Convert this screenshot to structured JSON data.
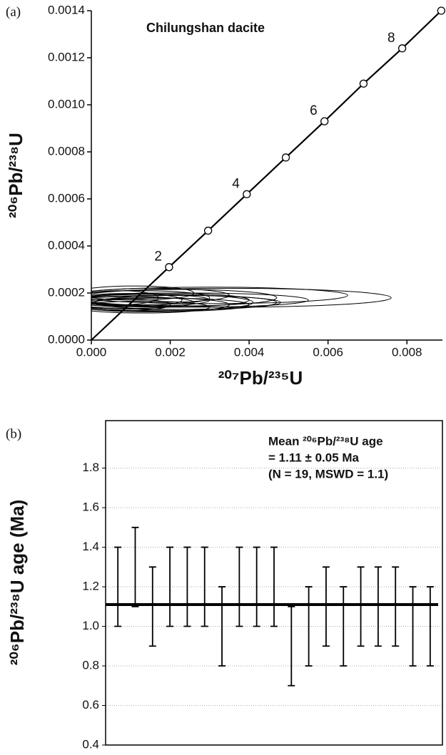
{
  "chart_data": [
    {
      "type": "concordia",
      "panel_label": "(a)",
      "title": "Chilungshan dacite",
      "x_label": "²⁰⁷Pb/²³⁵U",
      "y_label": "²⁰⁶Pb/²³⁸U",
      "xlim": [
        0,
        0.0089
      ],
      "ylim": [
        0,
        0.0014
      ],
      "xticks": [
        {
          "value": 0,
          "label": "0.000"
        },
        {
          "value": 0.002,
          "label": "0.002"
        },
        {
          "value": 0.004,
          "label": "0.004"
        },
        {
          "value": 0.006,
          "label": "0.006"
        },
        {
          "value": 0.008,
          "label": "0.008"
        }
      ],
      "yticks": [
        {
          "value": 0,
          "label": "0.0000"
        },
        {
          "value": 0.0002,
          "label": "0.0002"
        },
        {
          "value": 0.0004,
          "label": "0.0004"
        },
        {
          "value": 0.0006,
          "label": "0.0006"
        },
        {
          "value": 0.0008,
          "label": "0.0008"
        },
        {
          "value": 0.001,
          "label": "0.0010"
        },
        {
          "value": 0.0012,
          "label": "0.0012"
        },
        {
          "value": 0.0014,
          "label": "0.0014"
        }
      ],
      "concordia": {
        "x": [
          0,
          0.00197,
          0.00296,
          0.00394,
          0.00493,
          0.00591,
          0.0069,
          0.00788,
          0.00887
        ],
        "y": [
          0,
          0.00031,
          0.000465,
          0.00062,
          0.000776,
          0.00093,
          0.00109,
          0.00124,
          0.0014
        ],
        "point_labels": [
          null,
          "2",
          null,
          "4",
          null,
          "6",
          null,
          "8",
          null
        ]
      },
      "ellipses": {
        "x": [
          0.0035,
          0.003,
          0.0025,
          0.002,
          0.0022,
          0.0018,
          0.0015,
          0.0012,
          0.001,
          0.0016,
          0.0013,
          0.0009,
          0.0011,
          0.0019,
          0.0008,
          0.0024,
          0.0014,
          0.0007,
          0.0017
        ],
        "x_err": [
          0.0041,
          0.0035,
          0.003,
          0.0028,
          0.0025,
          0.0022,
          0.002,
          0.0018,
          0.0016,
          0.0019,
          0.0017,
          0.0014,
          0.0015,
          0.0021,
          0.0012,
          0.0023,
          0.0016,
          0.001,
          0.0024
        ],
        "y": [
          0.00018,
          0.00019,
          0.00017,
          0.00016,
          0.00018,
          0.00017,
          0.00015,
          0.00018,
          0.00016,
          0.00019,
          0.00014,
          0.00017,
          0.0002,
          0.00015,
          0.00015,
          0.00016,
          0.00017,
          0.00018,
          0.00016
        ],
        "y_err": [
          4e-05,
          3.5e-05,
          3e-05,
          3e-05,
          3.5e-05,
          3e-05,
          3e-05,
          3e-05,
          2.5e-05,
          3e-05,
          2.5e-05,
          2.8e-05,
          3e-05,
          2.8e-05,
          2.5e-05,
          3e-05,
          2.5e-05,
          3e-05,
          3.5e-05
        ]
      },
      "color": "#000000"
    },
    {
      "type": "errorbar",
      "panel_label": "(b)",
      "y_label": "²⁰⁶Pb/²³⁸U age (Ma)",
      "annotation": [
        "Mean ²⁰⁶Pb/²³⁸U age",
        "= 1.11 ± 0.05 Ma",
        "(N = 19, MSWD = 1.1)"
      ],
      "ylim": [
        0.4,
        2.04
      ],
      "yticks": [
        0.4,
        0.6,
        0.8,
        {
          "value": 1.0,
          "label": "1.0"
        },
        1.2,
        1.4,
        1.6,
        1.8
      ],
      "grid": true,
      "categories": [
        null,
        null,
        null,
        null,
        null,
        null,
        null,
        null,
        null,
        null,
        null,
        null,
        null,
        null,
        null,
        null,
        null,
        null,
        null
      ],
      "values": [
        1.2,
        1.3,
        1.1,
        1.2,
        1.2,
        1.2,
        1.0,
        1.2,
        1.2,
        1.2,
        0.9,
        1.0,
        1.1,
        1.0,
        1.1,
        1.1,
        1.1,
        1.0,
        1.0
      ],
      "errors": [
        0.2,
        0.2,
        0.2,
        0.2,
        0.2,
        0.2,
        0.2,
        0.2,
        0.2,
        0.2,
        0.2,
        0.2,
        0.2,
        0.2,
        0.2,
        0.2,
        0.2,
        0.2,
        0.2
      ],
      "mean": 1.11,
      "color": "#000000"
    }
  ]
}
